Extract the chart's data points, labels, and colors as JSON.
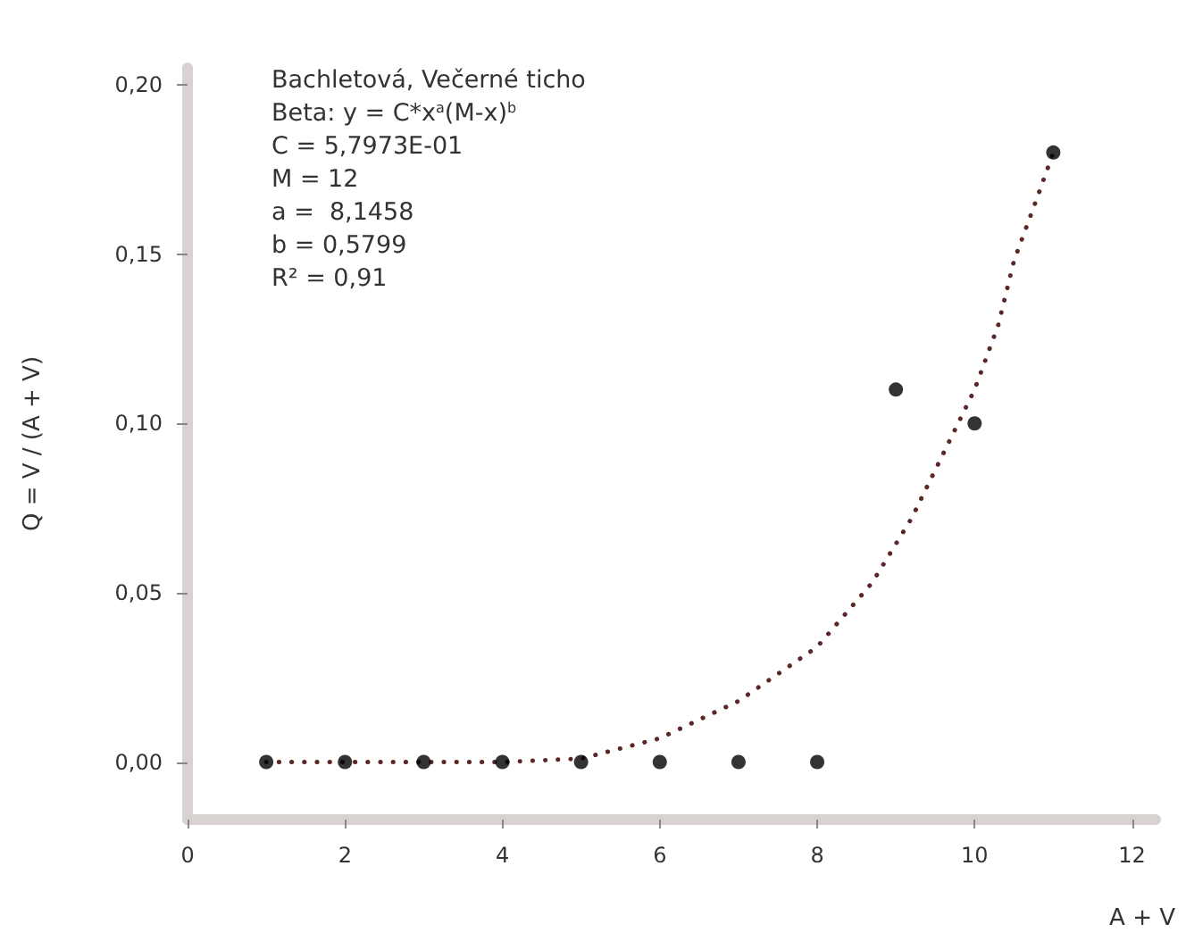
{
  "chart_data": {
    "type": "scatter",
    "xlabel": "A + V",
    "ylabel": "Q = V / (A + V)",
    "annotations": [
      "Bachletová, Večerné ticho",
      "Beta: y = C*x$^{a}$(M-x)$^{b}$",
      "C = 5,7973E-01",
      "M = 12",
      "a =  8,1458",
      "b = 0,5799",
      "R² = 0,91"
    ],
    "xlim": [
      0,
      12.3
    ],
    "xticks": [
      0,
      2,
      4,
      6,
      8,
      10,
      12
    ],
    "ylim": [
      -0.017,
      0.205
    ],
    "yticks": [
      {
        "value": 0,
        "label": "0,00"
      },
      {
        "value": 0.05,
        "label": "0,05"
      },
      {
        "value": 0.1,
        "label": "0,10"
      },
      {
        "value": 0.15,
        "label": "0,15"
      },
      {
        "value": 0.2,
        "label": "0,20"
      }
    ],
    "grid": false,
    "marker": "circle",
    "series": [
      {
        "type": "line",
        "color": "#5a2626",
        "marker": "none",
        "line_style": "dotted",
        "x": [
          1,
          2,
          3,
          4,
          5,
          6,
          7,
          8,
          8.7,
          9.2,
          9.6,
          10,
          10.3,
          10.5,
          10.8,
          11
        ],
        "values": [
          0,
          0,
          0,
          0,
          0.001,
          0.007,
          0.018,
          0.034,
          0.053,
          0.072,
          0.091,
          0.11,
          0.129,
          0.148,
          0.167,
          0.18
        ]
      },
      {
        "color": "#000000",
        "x": [
          1,
          2,
          3,
          4,
          5,
          6,
          7,
          8,
          9,
          10,
          11
        ],
        "values": [
          0,
          0,
          0,
          0,
          0,
          0,
          0,
          0,
          0.11,
          0.1,
          0.18
        ]
      }
    ]
  }
}
